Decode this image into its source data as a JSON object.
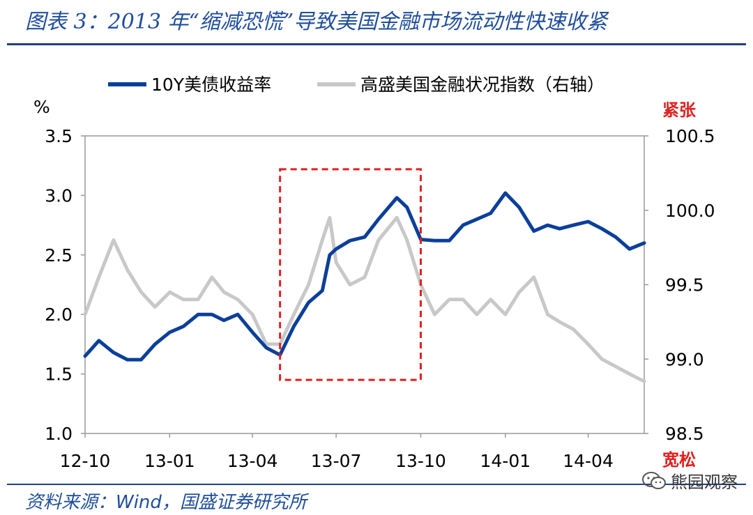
{
  "title": "图表 3：2013 年“缩减恐慌”导致美国金融市场流动性快速收紧",
  "source": "资料来源：Wind，国盛证券研究所",
  "watermark": "熊园观察",
  "colors": {
    "series1": "#0b3f9a",
    "series2": "#c8c8c8",
    "highlight": "#e02020",
    "brand": "#1f4e9b"
  },
  "chart_data": {
    "type": "line",
    "y_left_label": "%",
    "y_right_top_label": "紧张",
    "y_right_bottom_label": "宽松",
    "ylim_left": [
      1.0,
      3.5
    ],
    "yticks_left": [
      "1.0",
      "1.5",
      "2.0",
      "2.5",
      "3.0",
      "3.5"
    ],
    "ylim_right": [
      98.5,
      100.5
    ],
    "yticks_right": [
      "98.5",
      "99.0",
      "99.5",
      "100.0",
      "100.5"
    ],
    "xlim": [
      "2012-10",
      "2014-06"
    ],
    "xticks": [
      "12-10",
      "13-01",
      "13-04",
      "13-07",
      "13-10",
      "14-01",
      "14-04"
    ],
    "highlight_range": {
      "x_start": "2013-05",
      "x_end": "2013-10",
      "y_low": 1.45,
      "y_high": 3.22
    },
    "series": [
      {
        "name": "10Y美债收益率",
        "axis": "left",
        "x": [
          "2012-10-01",
          "2012-10-16",
          "2012-11-01",
          "2012-11-16",
          "2012-12-01",
          "2012-12-16",
          "2013-01-01",
          "2013-01-16",
          "2013-02-01",
          "2013-02-16",
          "2013-03-01",
          "2013-03-16",
          "2013-04-01",
          "2013-04-16",
          "2013-05-01",
          "2013-05-16",
          "2013-06-01",
          "2013-06-16",
          "2013-06-24",
          "2013-07-01",
          "2013-07-16",
          "2013-08-01",
          "2013-08-16",
          "2013-09-05",
          "2013-09-16",
          "2013-10-01",
          "2013-10-16",
          "2013-11-01",
          "2013-11-16",
          "2013-12-01",
          "2013-12-16",
          "2014-01-01",
          "2014-01-16",
          "2014-02-01",
          "2014-02-16",
          "2014-03-01",
          "2014-03-16",
          "2014-04-01",
          "2014-04-16",
          "2014-05-01",
          "2014-05-16",
          "2014-06-01"
        ],
        "values": [
          1.65,
          1.78,
          1.68,
          1.62,
          1.62,
          1.75,
          1.85,
          1.9,
          2.0,
          2.0,
          1.95,
          2.0,
          1.85,
          1.72,
          1.66,
          1.9,
          2.1,
          2.2,
          2.5,
          2.55,
          2.62,
          2.65,
          2.8,
          2.98,
          2.9,
          2.63,
          2.62,
          2.62,
          2.75,
          2.8,
          2.85,
          3.02,
          2.9,
          2.7,
          2.75,
          2.72,
          2.75,
          2.78,
          2.72,
          2.65,
          2.55,
          2.6
        ]
      },
      {
        "name": "高盛美国金融状况指数（右轴）",
        "axis": "right",
        "x": [
          "2012-10-01",
          "2012-10-16",
          "2012-11-01",
          "2012-11-16",
          "2012-12-01",
          "2012-12-16",
          "2013-01-01",
          "2013-01-16",
          "2013-02-01",
          "2013-02-16",
          "2013-03-01",
          "2013-03-16",
          "2013-04-01",
          "2013-04-16",
          "2013-05-01",
          "2013-05-16",
          "2013-06-01",
          "2013-06-16",
          "2013-06-24",
          "2013-07-01",
          "2013-07-16",
          "2013-08-01",
          "2013-08-16",
          "2013-09-05",
          "2013-09-16",
          "2013-10-01",
          "2013-10-16",
          "2013-11-01",
          "2013-11-16",
          "2013-12-01",
          "2013-12-16",
          "2014-01-01",
          "2014-01-16",
          "2014-02-01",
          "2014-02-16",
          "2014-03-01",
          "2014-03-16",
          "2014-04-01",
          "2014-04-16",
          "2014-05-01",
          "2014-05-16",
          "2014-06-01"
        ],
        "values": [
          99.3,
          99.55,
          99.8,
          99.6,
          99.45,
          99.35,
          99.45,
          99.4,
          99.4,
          99.55,
          99.45,
          99.4,
          99.3,
          99.1,
          99.1,
          99.3,
          99.5,
          99.8,
          99.95,
          99.65,
          99.5,
          99.55,
          99.8,
          99.95,
          99.8,
          99.5,
          99.3,
          99.4,
          99.4,
          99.3,
          99.4,
          99.3,
          99.45,
          99.55,
          99.3,
          99.25,
          99.2,
          99.1,
          99.0,
          98.95,
          98.9,
          98.85
        ]
      }
    ]
  }
}
